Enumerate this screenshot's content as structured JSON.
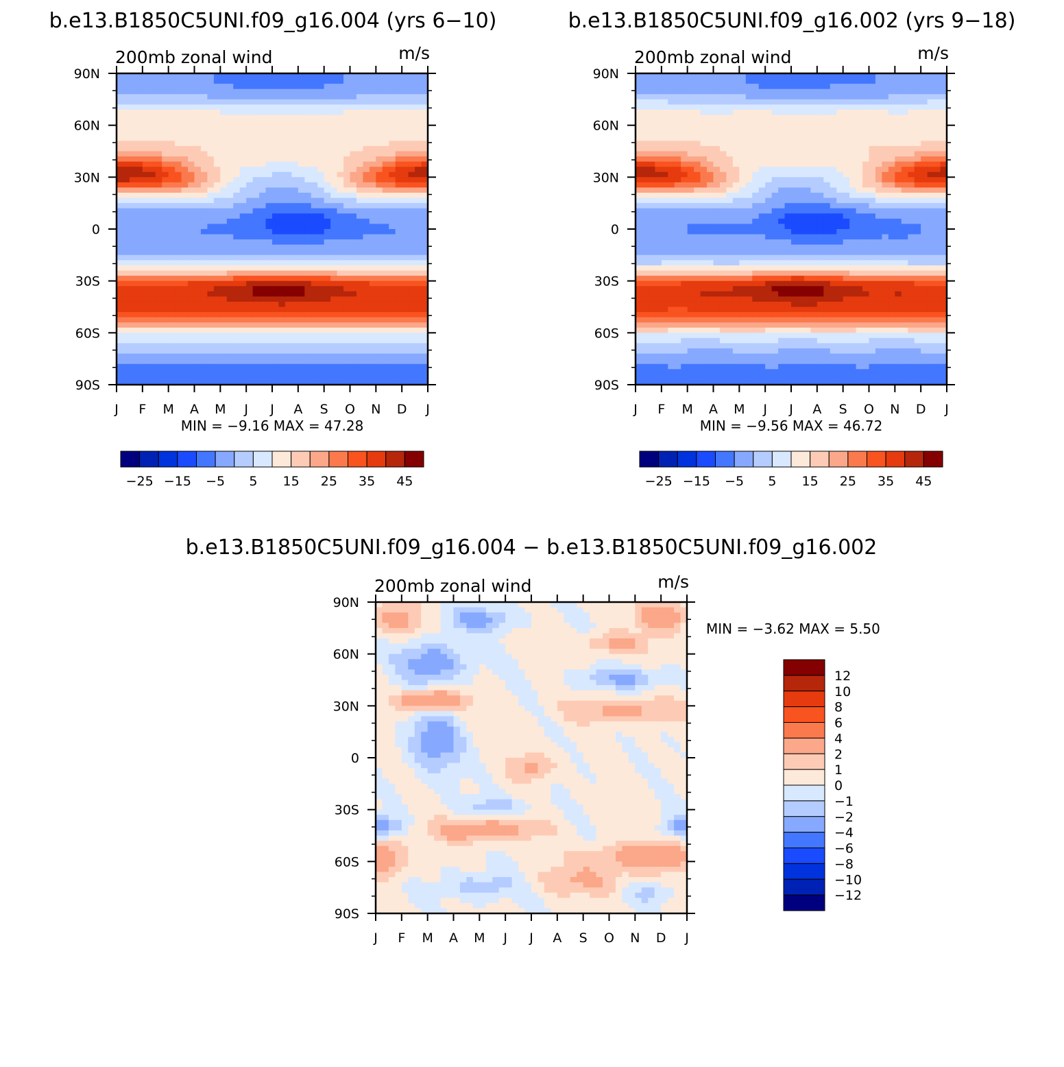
{
  "chart_data": [
    {
      "type": "heatmap",
      "title": "b.e13.B1850C5UNI.f09_g16.004 (yrs 6−10)",
      "left_label": "200mb zonal wind",
      "right_label": "m/s",
      "x_tick_labels": [
        "J",
        "F",
        "M",
        "A",
        "M",
        "J",
        "J",
        "A",
        "S",
        "O",
        "N",
        "D",
        "J"
      ],
      "y_tick_labels": [
        "90N",
        "60N",
        "30N",
        "0",
        "30S",
        "60S",
        "90S"
      ],
      "y_tick_values": [
        90,
        60,
        30,
        0,
        -30,
        -60,
        -90
      ],
      "ylim": [
        -90,
        90
      ],
      "stats_text": "MIN =   −9.16  MAX =    47.28",
      "min": -9.16,
      "max": 47.28,
      "colorbar": {
        "orientation": "horizontal",
        "labels": [
          "−25",
          "−15",
          "−5",
          "5",
          "15",
          "25",
          "35",
          "45"
        ],
        "levels": [
          -30,
          -25,
          -20,
          -15,
          -10,
          -5,
          0,
          5,
          10,
          15,
          20,
          25,
          30,
          35,
          40,
          45
        ],
        "colors": [
          "#00007f",
          "#0022b4",
          "#0033dd",
          "#1a4bff",
          "#4477ff",
          "#86a9ff",
          "#b4ccff",
          "#d8e8ff",
          "#fde9d9",
          "#fdcbb5",
          "#fba789",
          "#fa7a4e",
          "#f9531f",
          "#e63b0e",
          "#b5260b",
          "#850000"
        ]
      }
    },
    {
      "type": "heatmap",
      "title": "b.e13.B1850C5UNI.f09_g16.002 (yrs 9−18)",
      "left_label": "200mb zonal wind",
      "right_label": "m/s",
      "x_tick_labels": [
        "J",
        "F",
        "M",
        "A",
        "M",
        "J",
        "J",
        "A",
        "S",
        "O",
        "N",
        "D",
        "J"
      ],
      "y_tick_labels": [
        "90N",
        "60N",
        "30N",
        "0",
        "30S",
        "60S",
        "90S"
      ],
      "y_tick_values": [
        90,
        60,
        30,
        0,
        -30,
        -60,
        -90
      ],
      "ylim": [
        -90,
        90
      ],
      "stats_text": "MIN =   −9.56  MAX =    46.72",
      "min": -9.56,
      "max": 46.72,
      "colorbar": {
        "orientation": "horizontal",
        "labels": [
          "−25",
          "−15",
          "−5",
          "5",
          "15",
          "25",
          "35",
          "45"
        ],
        "levels": [
          -30,
          -25,
          -20,
          -15,
          -10,
          -5,
          0,
          5,
          10,
          15,
          20,
          25,
          30,
          35,
          40,
          45
        ],
        "colors": [
          "#00007f",
          "#0022b4",
          "#0033dd",
          "#1a4bff",
          "#4477ff",
          "#86a9ff",
          "#b4ccff",
          "#d8e8ff",
          "#fde9d9",
          "#fdcbb5",
          "#fba789",
          "#fa7a4e",
          "#f9531f",
          "#e63b0e",
          "#b5260b",
          "#850000"
        ]
      }
    },
    {
      "type": "heatmap",
      "title": "b.e13.B1850C5UNI.f09_g16.004 − b.e13.B1850C5UNI.f09_g16.002",
      "left_label": "200mb zonal wind",
      "right_label": "m/s",
      "x_tick_labels": [
        "J",
        "F",
        "M",
        "A",
        "M",
        "J",
        "J",
        "A",
        "S",
        "O",
        "N",
        "D",
        "J"
      ],
      "y_tick_labels": [
        "90N",
        "60N",
        "30N",
        "0",
        "30S",
        "60S",
        "90S"
      ],
      "y_tick_values": [
        90,
        60,
        30,
        0,
        -30,
        -60,
        -90
      ],
      "ylim": [
        -90,
        90
      ],
      "stats_text": "MIN =   −3.62  MAX =     5.50",
      "min": -3.62,
      "max": 5.5,
      "colorbar": {
        "orientation": "vertical",
        "labels": [
          "12",
          "10",
          "8",
          "6",
          "4",
          "2",
          "1",
          "0",
          "−1",
          "−2",
          "−4",
          "−6",
          "−8",
          "−10",
          "−12"
        ],
        "levels": [
          -12,
          -10,
          -8,
          -6,
          -4,
          -2,
          -1,
          0,
          1,
          2,
          4,
          6,
          8,
          10,
          12
        ],
        "colors": [
          "#00007f",
          "#0022b4",
          "#0033dd",
          "#1a4bff",
          "#4477ff",
          "#86a9ff",
          "#b4ccff",
          "#d8e8ff",
          "#fde9d9",
          "#fdcbb5",
          "#fba789",
          "#fa7a4e",
          "#f9531f",
          "#e63b0e",
          "#b5260b",
          "#850000"
        ]
      }
    }
  ]
}
